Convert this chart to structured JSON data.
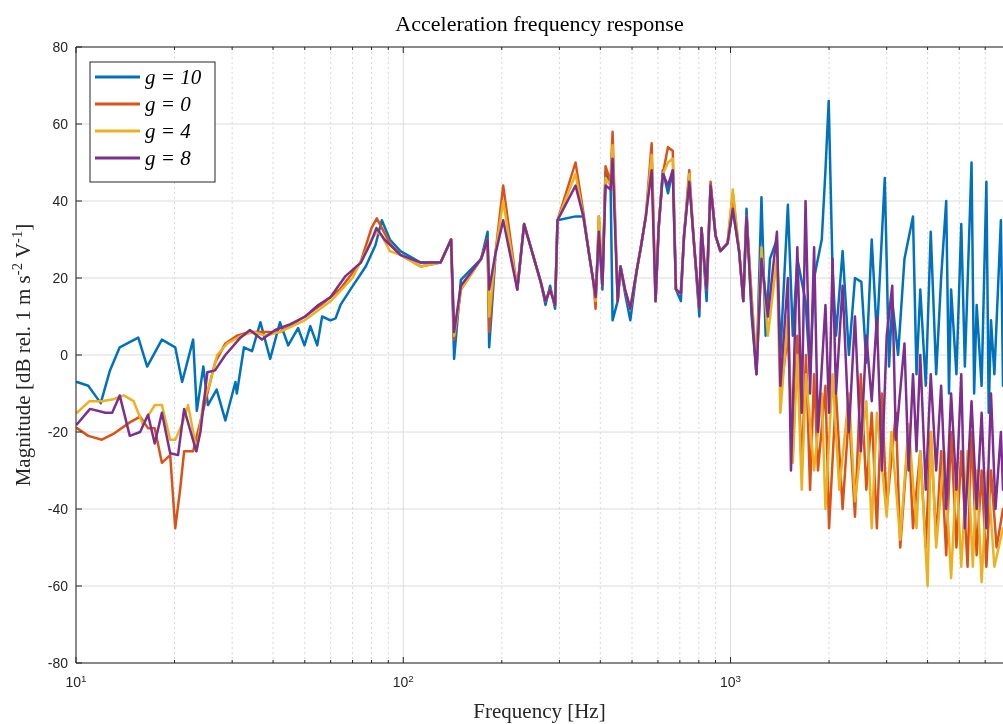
{
  "chart_data": {
    "type": "line",
    "title": "Acceleration frequency response",
    "xlabel": "Frequency [Hz]",
    "ylabel": "Magnitude [dB rel. 1 m s$^{-2}$ V$^{-1}$]",
    "log": "x",
    "grid": true,
    "legend": "top left",
    "line_style": "solid",
    "marker": "none",
    "xlim": [
      10,
      6800
    ],
    "ylim": [
      -80,
      80
    ],
    "xticks": [
      {
        "value": 10,
        "label": "10$^{1}$"
      },
      {
        "value": 20,
        "label": null
      },
      {
        "value": 30,
        "label": null
      },
      {
        "value": 40,
        "label": null
      },
      {
        "value": 50,
        "label": null
      },
      {
        "value": 60,
        "label": null
      },
      {
        "value": 70,
        "label": null
      },
      {
        "value": 80,
        "label": null
      },
      {
        "value": 90,
        "label": null
      },
      {
        "value": 100,
        "label": "10$^{2}$"
      },
      {
        "value": 200,
        "label": null
      },
      {
        "value": 300,
        "label": null
      },
      {
        "value": 400,
        "label": null
      },
      {
        "value": 500,
        "label": null
      },
      {
        "value": 600,
        "label": null
      },
      {
        "value": 700,
        "label": null
      },
      {
        "value": 800,
        "label": null
      },
      {
        "value": 900,
        "label": null
      },
      {
        "value": 1000,
        "label": "10$^{3}$"
      },
      {
        "value": 2000,
        "label": null
      },
      {
        "value": 3000,
        "label": null
      },
      {
        "value": 4000,
        "label": null
      },
      {
        "value": 5000,
        "label": null
      },
      {
        "value": 6000,
        "label": null
      }
    ],
    "yticks": [
      -80,
      -60,
      -40,
      -20,
      0,
      20,
      40,
      60,
      80
    ],
    "series": [
      {
        "name": "g = 10",
        "color": "#0072bd",
        "x": [
          10.07,
          10.9,
          11.9,
          12.7,
          13.6,
          15.5,
          16.5,
          18.3,
          20.1,
          21.1,
          22.8,
          23.4,
          24.5,
          25.3,
          26.9,
          28.6,
          30.7,
          31,
          32.6,
          34.5,
          36.6,
          39.2,
          42,
          44.5,
          47.7,
          49.9,
          52,
          54.6,
          56.5,
          59.9,
          62.1,
          64.3,
          68.9,
          76.8,
          82.2,
          86,
          91,
          98,
          113,
          130,
          140,
          143,
          150,
          173,
          181,
          183,
          191,
          202,
          223,
          234,
          263,
          272,
          281,
          291,
          296,
          336,
          355,
          373,
          381,
          387,
          396,
          406,
          415,
          430,
          436,
          452,
          461,
          476,
          494,
          517,
          532,
          551,
          574,
          590,
          603,
          621,
          644,
          666,
          681,
          705,
          721,
          748,
          770,
          803,
          815,
          845,
          869,
          900,
          931,
          979,
          1016,
          1062,
          1094,
          1119,
          1160,
          1200,
          1243,
          1280,
          1320,
          1386,
          1420,
          1497,
          1550,
          1600,
          1695,
          1750,
          1800,
          1900,
          1950,
          1995,
          2050,
          2100,
          2200,
          2300,
          2400,
          2510,
          2600,
          2700,
          2800,
          2960,
          3050,
          3120,
          3250,
          3400,
          3610,
          3700,
          3800,
          3950,
          4090,
          4250,
          4400,
          4560,
          4650,
          4720,
          4900,
          5070,
          5200,
          5450,
          5550,
          5650,
          5850,
          6050,
          6150,
          6250,
          6400,
          6700,
          6800
        ],
        "values": [
          -7,
          -8,
          -12.5,
          -4,
          2,
          4.5,
          -3,
          4,
          2,
          -7,
          4,
          -14.5,
          -3,
          -13,
          -9,
          -17,
          -7,
          -10,
          2,
          1,
          8.5,
          -1,
          8.5,
          2.5,
          7,
          2.5,
          7.5,
          2.5,
          10,
          9,
          9.5,
          13,
          17,
          23,
          28.5,
          35,
          30,
          27,
          24,
          24,
          30,
          -1,
          19.5,
          25,
          32,
          2,
          25,
          null,
          17,
          34,
          19,
          13,
          18,
          12,
          35,
          36,
          36,
          24,
          19,
          15,
          32,
          17,
          47.5,
          44,
          9,
          14,
          23,
          16,
          9,
          22,
          28,
          36,
          null,
          14,
          33,
          48,
          42,
          48,
          17,
          14,
          31,
          45.5,
          31,
          10,
          33,
          14,
          44,
          31,
          27,
          29,
          38,
          27,
          14,
          38,
          10,
          -5,
          41,
          5,
          25,
          30,
          0,
          39,
          5,
          25,
          14,
          -5,
          20,
          30,
          48,
          66,
          22,
          5,
          27,
          0,
          20,
          19,
          -2,
          30,
          5,
          46,
          -3,
          14,
          0,
          25,
          36,
          -5,
          17,
          -8,
          32,
          -5,
          20,
          40,
          -10,
          17,
          -5,
          34,
          -3,
          50,
          -10,
          13,
          -8,
          45,
          -15,
          9,
          -5,
          35,
          -8
        ]
      },
      {
        "name": "g = 0",
        "color": "#d95319",
        "x": [
          10.07,
          10.9,
          12,
          13,
          14.6,
          15.7,
          16.6,
          17.4,
          18.3,
          19.4,
          20.1,
          20.8,
          21.4,
          22.8,
          23.4,
          25.2,
          26.6,
          28.6,
          31,
          34,
          37,
          42,
          50,
          56,
          64,
          74,
          80,
          83,
          86,
          91,
          98,
          113,
          130,
          140,
          143,
          150,
          173,
          181,
          183,
          191,
          202,
          223,
          234,
          263,
          272,
          281,
          291,
          296,
          336,
          355,
          373,
          381,
          387,
          396,
          406,
          415,
          430,
          436,
          452,
          461,
          476,
          494,
          517,
          532,
          551,
          574,
          590,
          603,
          621,
          644,
          666,
          681,
          705,
          721,
          748,
          770,
          803,
          815,
          845,
          869,
          900,
          931,
          979,
          1016,
          1062,
          1094,
          1119,
          1160,
          1200,
          1243,
          1300,
          1386,
          1420,
          1497,
          1550,
          1600,
          1650,
          1700,
          1750,
          1800,
          1850,
          1950,
          2000,
          2100,
          2200,
          2300,
          2400,
          2500,
          2600,
          2700,
          2800,
          2900,
          3000,
          3200,
          3300,
          3500,
          3610,
          3800,
          3950,
          4090,
          4250,
          4400,
          4560,
          4720,
          4900,
          5070,
          5300,
          5450,
          5650,
          5850,
          6050,
          6250,
          6500,
          6800
        ],
        "values": [
          -19,
          -21,
          -22,
          -20.5,
          -17.5,
          -16,
          -19,
          -19,
          -28,
          -26,
          -45,
          -35,
          -25,
          -25,
          -21,
          -10,
          -2,
          3,
          5,
          6,
          6,
          6,
          10,
          13,
          17,
          24,
          33,
          35.5,
          33,
          29,
          26,
          23,
          24,
          30,
          4,
          17,
          25,
          30,
          6,
          26,
          44,
          17,
          34,
          19,
          14,
          17,
          13,
          35,
          50,
          37,
          24,
          19,
          12,
          36,
          18,
          49,
          45,
          58,
          14,
          23,
          17,
          12,
          22,
          28,
          36,
          55,
          14,
          33,
          47,
          54,
          53,
          17,
          16,
          31,
          48,
          31,
          12,
          33,
          17,
          45,
          31,
          27,
          29,
          42,
          27,
          14,
          36,
          15,
          -5,
          25,
          10,
          null,
          -10,
          5,
          -25,
          5,
          -30,
          0,
          -35,
          -5,
          -30,
          -8,
          -45,
          -10,
          -40,
          -15,
          -42,
          -5,
          -35,
          -15,
          -45,
          -10,
          -40,
          -15,
          -50,
          -20,
          -45,
          -25,
          -50,
          -20,
          -48,
          -25,
          -52,
          -20,
          -50,
          -25,
          -55,
          -20,
          -52,
          -30,
          -55,
          -30,
          -50,
          -40
        ]
      },
      {
        "name": "g = 4",
        "color": "#edb120",
        "x": [
          10.07,
          11,
          12,
          13,
          14,
          15,
          16,
          17.4,
          18.3,
          19.4,
          20.1,
          21.1,
          22,
          23.4,
          24.5,
          25.5,
          27,
          29,
          32,
          35,
          38,
          42,
          50,
          60,
          70,
          80,
          83,
          86,
          91,
          98,
          113,
          130,
          140,
          143,
          150,
          173,
          181,
          183,
          191,
          202,
          223,
          234,
          263,
          272,
          281,
          291,
          296,
          336,
          355,
          373,
          381,
          387,
          396,
          406,
          415,
          430,
          436,
          452,
          461,
          476,
          494,
          517,
          532,
          551,
          574,
          590,
          603,
          621,
          644,
          666,
          681,
          705,
          721,
          748,
          770,
          803,
          815,
          845,
          869,
          900,
          931,
          979,
          1016,
          1062,
          1094,
          1119,
          1160,
          1200,
          1243,
          1300,
          1386,
          1420,
          1497,
          1550,
          1600,
          1650,
          1700,
          1800,
          1900,
          1950,
          2050,
          2150,
          2300,
          2400,
          2600,
          2700,
          2800,
          3000,
          3100,
          3300,
          3500,
          3700,
          3800,
          4000,
          4100,
          4250,
          4500,
          4720,
          4900,
          5070,
          5300,
          5500,
          5650,
          5850,
          6100,
          6400,
          6800
        ],
        "values": [
          -15,
          -12,
          -12,
          -11.5,
          -10.5,
          -12,
          -18,
          -13,
          -13,
          -22,
          -22,
          -18,
          -13,
          -25,
          -12,
          -8,
          0,
          3,
          5,
          6,
          5,
          6,
          9,
          14,
          20,
          30,
          32,
          31,
          27,
          26,
          23,
          24,
          30,
          5,
          17,
          25,
          30,
          10,
          26,
          40,
          17,
          34,
          19,
          14,
          17,
          13,
          35,
          47,
          36,
          24,
          19,
          14,
          36,
          18,
          46,
          44,
          54.5,
          14,
          23,
          17,
          12,
          22,
          28,
          36,
          52,
          14,
          33,
          47,
          50,
          51,
          17,
          16,
          31,
          47,
          31,
          12,
          33,
          17,
          44,
          31,
          27,
          29,
          43,
          27,
          14,
          36,
          15,
          -2,
          28,
          5,
          25,
          -15,
          10,
          -28,
          0,
          -35,
          -5,
          -30,
          -10,
          -40,
          -5,
          -35,
          -10,
          -38,
          -12,
          -45,
          -15,
          -42,
          -20,
          -48,
          -18,
          -45,
          -25,
          -60,
          -20,
          -50,
          -25,
          -58,
          -30,
          -55,
          -25,
          -55,
          -30,
          -59,
          -30,
          -55,
          -45
        ]
      },
      {
        "name": "g = 8",
        "color": "#7e2f8e",
        "x": [
          10.07,
          11.04,
          12.3,
          12.9,
          13.6,
          14.6,
          15.7,
          16.6,
          17.4,
          18.3,
          19.4,
          20.5,
          21.4,
          23.3,
          24,
          25.2,
          26.6,
          28.6,
          31.8,
          34,
          37,
          40.6,
          45.2,
          50.2,
          55,
          59.9,
          66.6,
          74.2,
          79.4,
          82.8,
          87.6,
          98,
          113,
          130,
          140,
          143,
          150,
          173,
          181,
          183,
          191,
          202,
          223,
          234,
          263,
          272,
          281,
          291,
          296,
          336,
          355,
          373,
          381,
          387,
          396,
          406,
          415,
          430,
          436,
          452,
          461,
          476,
          494,
          517,
          532,
          551,
          574,
          590,
          603,
          621,
          644,
          666,
          681,
          705,
          721,
          748,
          770,
          803,
          815,
          845,
          869,
          900,
          931,
          979,
          1016,
          1062,
          1094,
          1119,
          1160,
          1200,
          1243,
          1300,
          1386,
          1420,
          1497,
          1530,
          1600,
          1650,
          1695,
          1750,
          1800,
          1850,
          1950,
          2000,
          2050,
          2100,
          2200,
          2300,
          2400,
          2500,
          2600,
          2700,
          2800,
          2900,
          3000,
          3120,
          3200,
          3400,
          3500,
          3610,
          3700,
          3800,
          3950,
          4090,
          4250,
          4400,
          4560,
          4720,
          4900,
          5070,
          5200,
          5450,
          5650,
          5850,
          6050,
          6250,
          6450,
          6700,
          6800
        ],
        "values": [
          -18,
          -14,
          -15,
          -15,
          -10.5,
          -21,
          -20,
          -15.5,
          -23,
          -15,
          -25.5,
          -26,
          -14,
          -25,
          -20,
          -4.5,
          -4,
          0,
          4.5,
          6.5,
          4,
          6.5,
          8,
          10,
          13,
          15,
          20.5,
          24,
          29,
          33,
          30,
          26,
          24,
          24,
          30,
          6,
          18,
          25,
          30,
          17,
          26,
          35,
          17,
          34,
          19,
          14,
          17,
          13,
          35,
          44,
          36,
          24,
          19,
          15,
          32,
          18,
          44,
          43,
          51,
          14,
          23,
          17,
          12,
          22,
          28,
          36,
          48,
          14,
          33,
          47,
          44,
          48,
          17,
          16,
          31,
          45,
          31,
          12,
          33,
          17,
          44,
          31,
          27,
          29,
          38,
          27,
          14,
          36,
          12,
          -5,
          25,
          10,
          32,
          -8,
          20,
          -30,
          28,
          -15,
          40,
          -10,
          28,
          -20,
          13,
          -15,
          25,
          -10,
          18,
          -20,
          10,
          -25,
          5,
          -12,
          10,
          -30,
          5,
          18,
          -22,
          3,
          -30,
          -5,
          -25,
          0,
          -35,
          -5,
          -30,
          -8,
          -40,
          -10,
          -35,
          -5,
          -45,
          -12,
          -40,
          -15,
          -45,
          -10,
          -40,
          -20,
          -35
        ]
      }
    ]
  }
}
